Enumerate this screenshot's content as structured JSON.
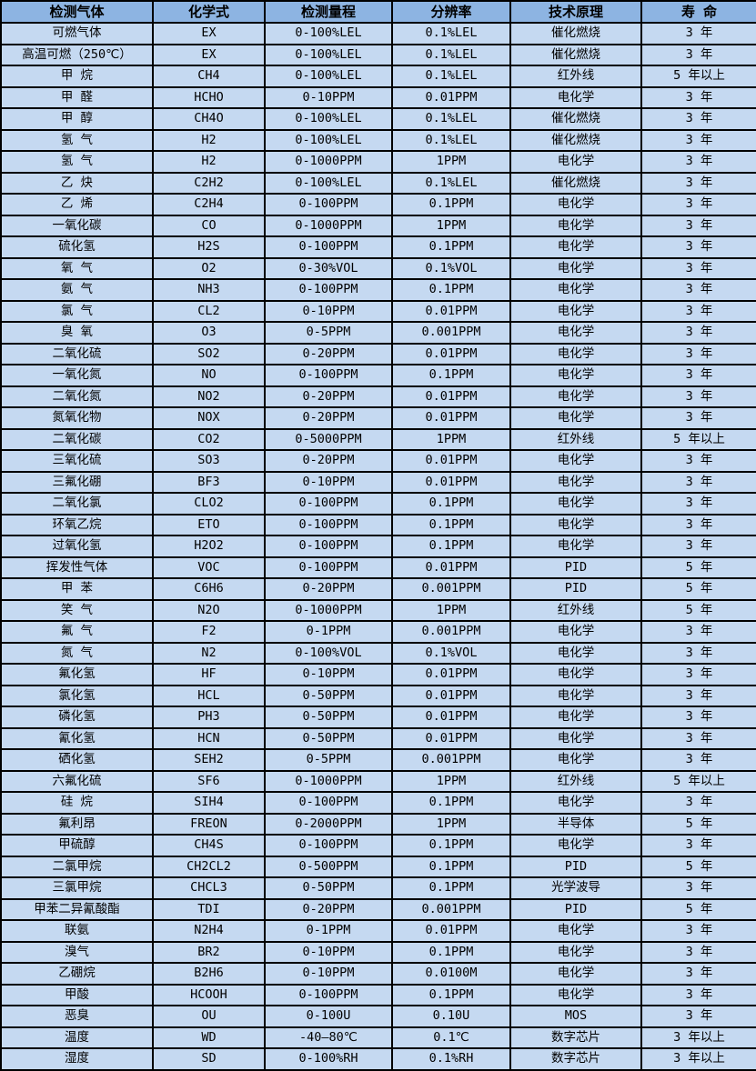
{
  "table": {
    "columns": [
      "检测气体",
      "化学式",
      "检测量程",
      "分辨率",
      "技术原理",
      "寿 命"
    ],
    "rows": [
      [
        "可燃气体",
        "EX",
        "0-100%LEL",
        "0.1%LEL",
        "催化燃烧",
        "3 年"
      ],
      [
        "高温可燃（250℃）",
        "EX",
        "0-100%LEL",
        "0.1%LEL",
        "催化燃烧",
        "3 年"
      ],
      [
        "甲 烷",
        "CH4",
        "0-100%LEL",
        "0.1%LEL",
        "红外线",
        "5 年以上"
      ],
      [
        "甲 醛",
        "HCHO",
        "0-10PPM",
        "0.01PPM",
        "电化学",
        "3 年"
      ],
      [
        "甲 醇",
        "CH4O",
        "0-100%LEL",
        "0.1%LEL",
        "催化燃烧",
        "3 年"
      ],
      [
        "氢 气",
        "H2",
        "0-100%LEL",
        "0.1%LEL",
        "催化燃烧",
        "3 年"
      ],
      [
        "氢 气",
        "H2",
        "0-1000PPM",
        "1PPM",
        "电化学",
        "3 年"
      ],
      [
        "乙 炔",
        "C2H2",
        "0-100%LEL",
        "0.1%LEL",
        "催化燃烧",
        "3 年"
      ],
      [
        "乙 烯",
        "C2H4",
        "0-100PPM",
        "0.1PPM",
        "电化学",
        "3 年"
      ],
      [
        "一氧化碳",
        "CO",
        "0-1000PPM",
        "1PPM",
        "电化学",
        "3 年"
      ],
      [
        "硫化氢",
        "H2S",
        "0-100PPM",
        "0.1PPM",
        "电化学",
        "3 年"
      ],
      [
        "氧 气",
        "O2",
        "0-30%VOL",
        "0.1%VOL",
        "电化学",
        "3 年"
      ],
      [
        "氨 气",
        "NH3",
        "0-100PPM",
        "0.1PPM",
        "电化学",
        "3 年"
      ],
      [
        "氯 气",
        "CL2",
        "0-10PPM",
        "0.01PPM",
        "电化学",
        "3 年"
      ],
      [
        "臭 氧",
        "O3",
        "0-5PPM",
        "0.001PPM",
        "电化学",
        "3 年"
      ],
      [
        "二氧化硫",
        "SO2",
        "0-20PPM",
        "0.01PPM",
        "电化学",
        "3 年"
      ],
      [
        "一氧化氮",
        "NO",
        "0-100PPM",
        "0.1PPM",
        "电化学",
        "3 年"
      ],
      [
        "二氧化氮",
        "NO2",
        "0-20PPM",
        "0.01PPM",
        "电化学",
        "3 年"
      ],
      [
        "氮氧化物",
        "NOX",
        "0-20PPM",
        "0.01PPM",
        "电化学",
        "3 年"
      ],
      [
        "二氧化碳",
        "CO2",
        "0-5000PPM",
        "1PPM",
        "红外线",
        "5 年以上"
      ],
      [
        "三氧化硫",
        "SO3",
        "0-20PPM",
        "0.01PPM",
        "电化学",
        "3 年"
      ],
      [
        "三氟化硼",
        "BF3",
        "0-10PPM",
        "0.01PPM",
        "电化学",
        "3 年"
      ],
      [
        "二氧化氯",
        "CLO2",
        "0-100PPM",
        "0.1PPM",
        "电化学",
        "3 年"
      ],
      [
        "环氧乙烷",
        "ETO",
        "0-100PPM",
        "0.1PPM",
        "电化学",
        "3 年"
      ],
      [
        "过氧化氢",
        "H2O2",
        "0-100PPM",
        "0.1PPM",
        "电化学",
        "3 年"
      ],
      [
        "挥发性气体",
        "VOC",
        "0-100PPM",
        "0.01PPM",
        "PID",
        "5 年"
      ],
      [
        "甲 苯",
        "C6H6",
        "0-20PPM",
        "0.001PPM",
        "PID",
        "5 年"
      ],
      [
        "笑 气",
        "N2O",
        "0-1000PPM",
        "1PPM",
        "红外线",
        "5 年"
      ],
      [
        "氟 气",
        "F2",
        "0-1PPM",
        "0.001PPM",
        "电化学",
        "3 年"
      ],
      [
        "氮 气",
        "N2",
        "0-100%VOL",
        "0.1%VOL",
        "电化学",
        "3 年"
      ],
      [
        "氟化氢",
        "HF",
        "0-10PPM",
        "0.01PPM",
        "电化学",
        "3 年"
      ],
      [
        "氯化氢",
        "HCL",
        "0-50PPM",
        "0.01PPM",
        "电化学",
        "3 年"
      ],
      [
        "磷化氢",
        "PH3",
        "0-50PPM",
        "0.01PPM",
        "电化学",
        "3 年"
      ],
      [
        "氰化氢",
        "HCN",
        "0-50PPM",
        "0.01PPM",
        "电化学",
        "3 年"
      ],
      [
        "硒化氢",
        "SEH2",
        "0-5PPM",
        "0.001PPM",
        "电化学",
        "3 年"
      ],
      [
        "六氟化硫",
        "SF6",
        "0-1000PPM",
        "1PPM",
        "红外线",
        "5 年以上"
      ],
      [
        "硅 烷",
        "SIH4",
        "0-100PPM",
        "0.1PPM",
        "电化学",
        "3 年"
      ],
      [
        "氟利昂",
        "FREON",
        "0-2000PPM",
        "1PPM",
        "半导体",
        "5 年"
      ],
      [
        "甲硫醇",
        "CH4S",
        "0-100PPM",
        "0.1PPM",
        "电化学",
        "3 年"
      ],
      [
        "二氯甲烷",
        "CH2CL2",
        "0-500PPM",
        "0.1PPM",
        "PID",
        "5 年"
      ],
      [
        "三氯甲烷",
        "CHCL3",
        "0-50PPM",
        "0.1PPM",
        "光学波导",
        "3 年"
      ],
      [
        "甲苯二异氰酸酯",
        "TDI",
        "0-20PPM",
        "0.001PPM",
        "PID",
        "5 年"
      ],
      [
        "联氨",
        "N2H4",
        "0-1PPM",
        "0.01PPM",
        "电化学",
        "3 年"
      ],
      [
        "溴气",
        "BR2",
        "0-10PPM",
        "0.1PPM",
        "电化学",
        "3 年"
      ],
      [
        "乙硼烷",
        "B2H6",
        "0-10PPM",
        "0.0100M",
        "电化学",
        "3 年"
      ],
      [
        "甲酸",
        "HCOOH",
        "0-100PPM",
        "0.1PPM",
        "电化学",
        "3 年"
      ],
      [
        "恶臭",
        "OU",
        "0-100U",
        "0.10U",
        "MOS",
        "3 年"
      ],
      [
        "温度",
        "WD",
        "-40—80℃",
        "0.1℃",
        "数字芯片",
        "3 年以上"
      ],
      [
        "湿度",
        "SD",
        "0-100%RH",
        "0.1%RH",
        "数字芯片",
        "3 年以上"
      ]
    ]
  },
  "colors": {
    "header_bg": "#8db4e2",
    "row_bg": "#c5d9f1",
    "border": "#000000",
    "text": "#000000"
  }
}
